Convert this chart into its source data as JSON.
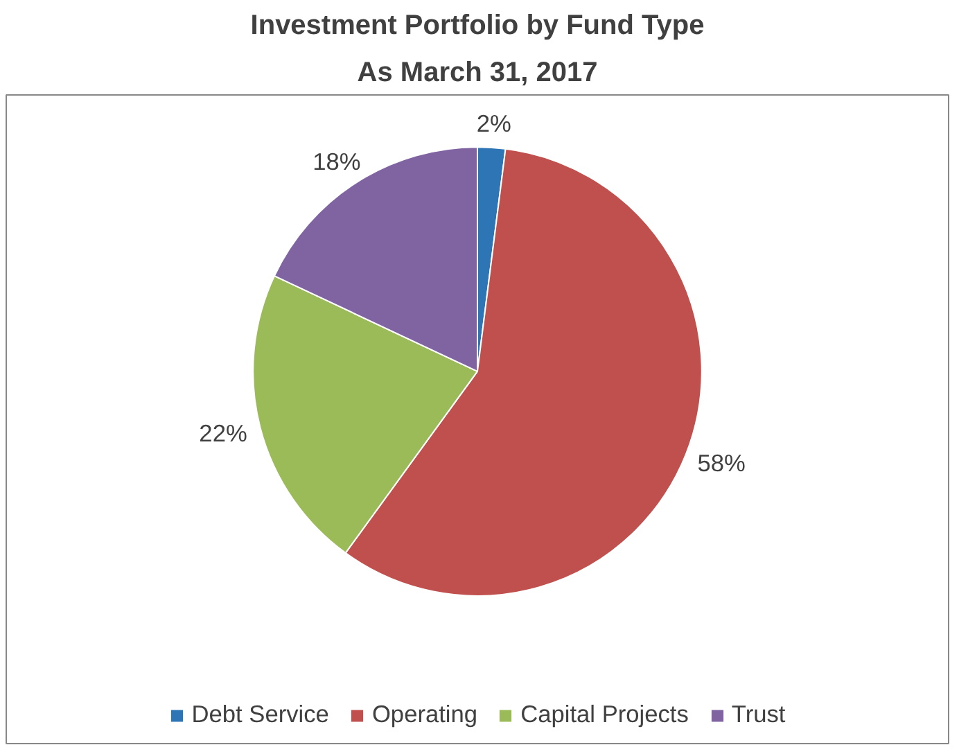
{
  "chart_data": {
    "type": "pie",
    "title": "Investment Portfolio by Fund Type",
    "subtitle": "As March 31, 2017",
    "categories": [
      "Debt Service",
      "Operating",
      "Capital Projects",
      "Trust"
    ],
    "values": [
      2,
      58,
      22,
      18
    ],
    "value_labels": [
      "2%",
      "58%",
      "22%",
      "18%"
    ],
    "colors": [
      "#2e75b6",
      "#c0504d",
      "#9bbb59",
      "#8064a2"
    ],
    "legend": "bottom"
  }
}
